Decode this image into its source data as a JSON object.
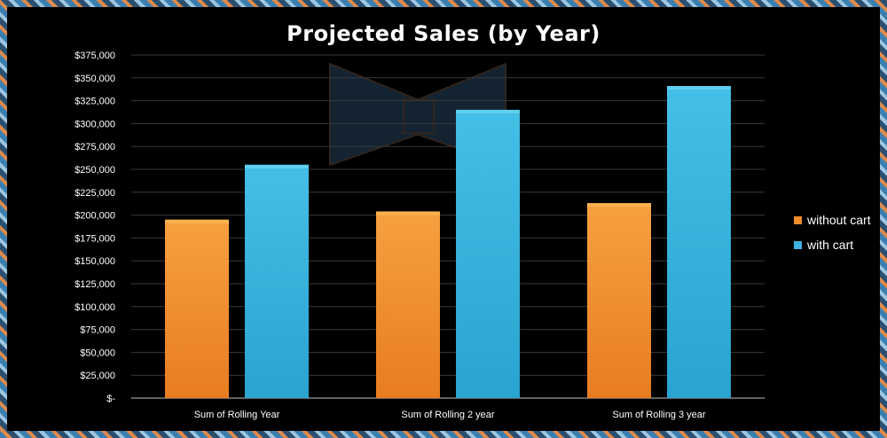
{
  "chart_data": {
    "type": "bar",
    "title": "Projected Sales (by Year)",
    "categories": [
      "Sum of Rolling Year",
      "Sum of Rolling 2 year",
      "Sum of Rolling 3 year"
    ],
    "series": [
      {
        "name": "without cart",
        "values": [
          195000,
          204000,
          213000
        ],
        "color": "#f08c2a"
      },
      {
        "name": "with cart",
        "values": [
          255000,
          315000,
          341000
        ],
        "color": "#3bb3dc"
      }
    ],
    "ylim": [
      0,
      375000
    ],
    "yticks": [
      "$-",
      "$25,000",
      "$50,000",
      "$75,000",
      "$100,000",
      "$125,000",
      "$150,000",
      "$175,000",
      "$200,000",
      "$225,000",
      "$250,000",
      "$275,000",
      "$300,000",
      "$325,000",
      "$350,000",
      "$375,000"
    ],
    "ytick_values": [
      0,
      25000,
      50000,
      75000,
      100000,
      125000,
      150000,
      175000,
      200000,
      225000,
      250000,
      275000,
      300000,
      325000,
      350000,
      375000
    ],
    "grid": true,
    "legend": "right",
    "background": "#000000",
    "watermark_icon": "bow-tie-logo"
  }
}
